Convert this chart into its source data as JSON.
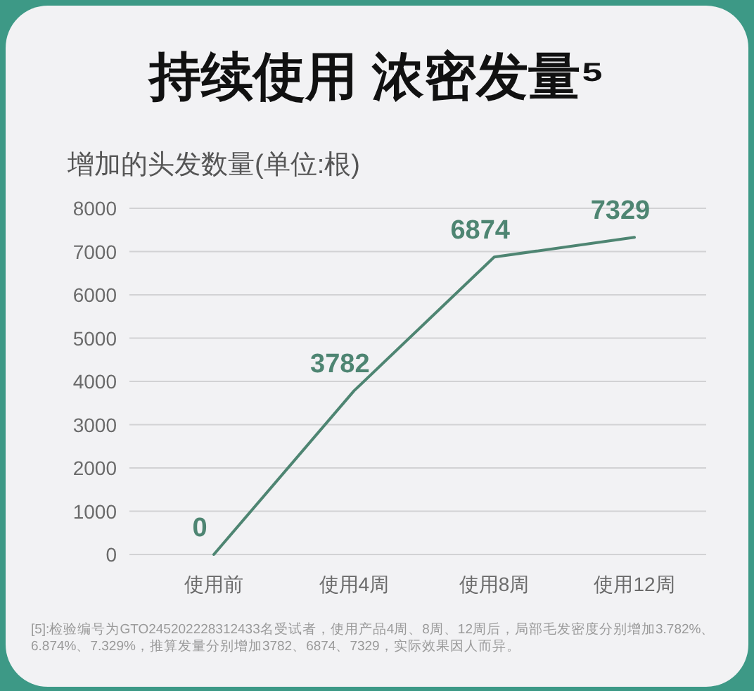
{
  "chart_data": {
    "type": "line",
    "title": "持续使用 浓密发量⁵",
    "ylabel": "增加的头发数量(单位:根)",
    "categories": [
      "使用前",
      "使用4周",
      "使用8周",
      "使用12周"
    ],
    "values": [
      0,
      3782,
      6874,
      7329
    ],
    "color": "#4e8572",
    "ylim": [
      0,
      8000
    ],
    "yticks": [
      0,
      1000,
      2000,
      3000,
      4000,
      5000,
      6000,
      7000,
      8000
    ],
    "grid": "y",
    "data_labels": true,
    "annotations": [
      "[5]:检验编号为GTO245202228312433名受试者，使用产品4周、8周、12周后，局部毛发密度分别增加3.782%、6.874%、7.329%，推算发量分别增加3782、6874、7329，实际效果因人而异。"
    ]
  }
}
